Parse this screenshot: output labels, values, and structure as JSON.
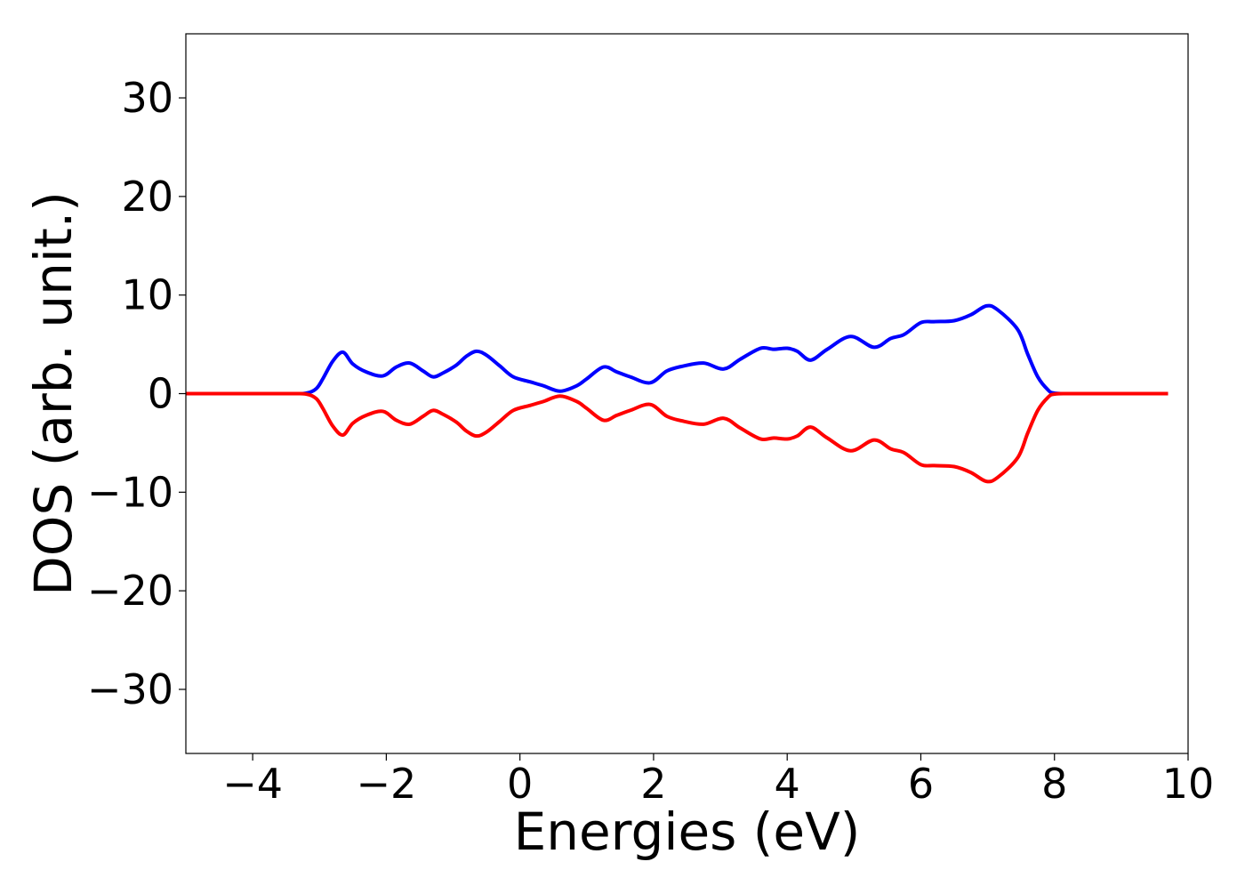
{
  "chart_data": {
    "type": "line",
    "title": "",
    "xlabel": "Energies (eV)",
    "ylabel": "DOS (arb. unit.)",
    "xlim": [
      -5,
      10
    ],
    "ylim": [
      -36.5,
      36.5
    ],
    "xticks": [
      -4,
      -2,
      0,
      2,
      4,
      6,
      8,
      10
    ],
    "yticks": [
      -30,
      -20,
      -10,
      0,
      10,
      20,
      30
    ],
    "xtick_labels": [
      "−4",
      "−2",
      "0",
      "2",
      "4",
      "6",
      "8",
      "10"
    ],
    "ytick_labels": [
      "−30",
      "−20",
      "−10",
      "0",
      "10",
      "20",
      "30"
    ],
    "grid": false,
    "legend": "none",
    "series": [
      {
        "color": "#0000ff",
        "x": [
          -5.0,
          -3.5,
          -3.2,
          -3.05,
          -2.95,
          -2.8,
          -2.65,
          -2.5,
          -2.3,
          -2.05,
          -1.85,
          -1.65,
          -1.45,
          -1.3,
          -1.15,
          -0.95,
          -0.8,
          -0.65,
          -0.5,
          -0.3,
          -0.1,
          0.15,
          0.35,
          0.6,
          0.85,
          1.0,
          1.25,
          1.45,
          1.65,
          1.95,
          2.2,
          2.45,
          2.75,
          3.05,
          3.3,
          3.6,
          3.8,
          4.0,
          4.15,
          4.35,
          4.6,
          4.95,
          5.3,
          5.55,
          5.75,
          6.0,
          6.2,
          6.5,
          6.75,
          6.98,
          7.15,
          7.45,
          7.6,
          7.75,
          7.9,
          8.0,
          8.3,
          9.7
        ],
        "y": [
          0.0,
          0.0,
          0.05,
          0.5,
          1.5,
          3.3,
          4.2,
          3.0,
          2.2,
          1.8,
          2.7,
          3.1,
          2.3,
          1.7,
          2.1,
          2.9,
          3.8,
          4.3,
          3.9,
          2.8,
          1.7,
          1.2,
          0.8,
          0.25,
          0.8,
          1.5,
          2.7,
          2.2,
          1.7,
          1.1,
          2.3,
          2.8,
          3.1,
          2.5,
          3.5,
          4.6,
          4.5,
          4.6,
          4.3,
          3.4,
          4.5,
          5.8,
          4.7,
          5.6,
          6.0,
          7.2,
          7.3,
          7.4,
          8.0,
          8.9,
          8.5,
          6.5,
          4.0,
          1.7,
          0.4,
          0.05,
          0.0,
          0.0
        ]
      },
      {
        "color": "#ff0000",
        "x": [
          -5.0,
          -3.5,
          -3.2,
          -3.05,
          -2.95,
          -2.8,
          -2.65,
          -2.5,
          -2.3,
          -2.05,
          -1.85,
          -1.65,
          -1.45,
          -1.3,
          -1.15,
          -0.95,
          -0.8,
          -0.65,
          -0.5,
          -0.3,
          -0.1,
          0.15,
          0.35,
          0.6,
          0.85,
          1.0,
          1.25,
          1.45,
          1.65,
          1.95,
          2.2,
          2.45,
          2.75,
          3.05,
          3.3,
          3.6,
          3.8,
          4.0,
          4.15,
          4.35,
          4.6,
          4.95,
          5.3,
          5.55,
          5.75,
          6.0,
          6.2,
          6.5,
          6.75,
          6.98,
          7.15,
          7.45,
          7.6,
          7.75,
          7.9,
          8.0,
          8.3,
          9.7
        ],
        "y": [
          0.0,
          0.0,
          -0.05,
          -0.5,
          -1.5,
          -3.3,
          -4.2,
          -3.0,
          -2.2,
          -1.8,
          -2.7,
          -3.1,
          -2.3,
          -1.7,
          -2.1,
          -2.9,
          -3.8,
          -4.3,
          -3.9,
          -2.8,
          -1.7,
          -1.2,
          -0.8,
          -0.25,
          -0.8,
          -1.5,
          -2.7,
          -2.2,
          -1.7,
          -1.1,
          -2.3,
          -2.8,
          -3.1,
          -2.5,
          -3.5,
          -4.6,
          -4.5,
          -4.6,
          -4.3,
          -3.4,
          -4.5,
          -5.8,
          -4.7,
          -5.6,
          -6.0,
          -7.2,
          -7.3,
          -7.4,
          -8.0,
          -8.9,
          -8.5,
          -6.5,
          -4.0,
          -1.7,
          -0.4,
          -0.05,
          0.0,
          0.0
        ]
      }
    ]
  }
}
